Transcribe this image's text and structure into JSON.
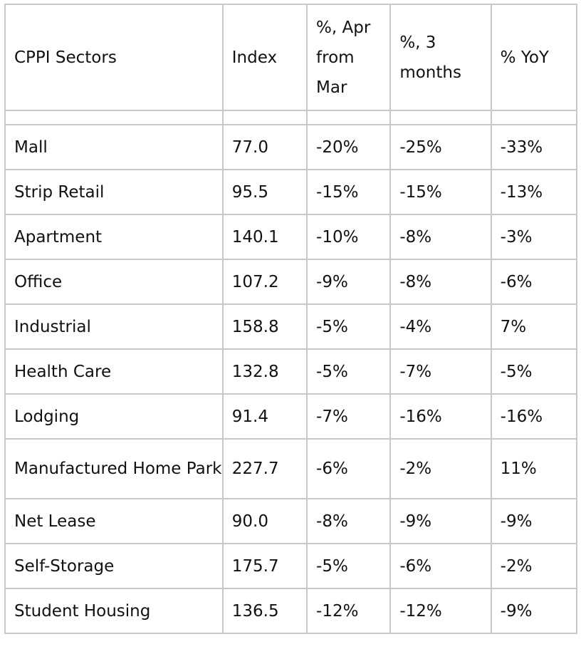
{
  "table": {
    "headers": [
      "CPPI Sectors",
      "Index",
      "%,  Apr from Mar",
      "%, 3 months",
      "%  YoY"
    ],
    "rows": [
      {
        "sector": "Mall",
        "index": "77.0",
        "mom": "-20%",
        "three_month": "-25%",
        "yoy": "-33%"
      },
      {
        "sector": "Strip Retail",
        "index": "95.5",
        "mom": "-15%",
        "three_month": "-15%",
        "yoy": "-13%"
      },
      {
        "sector": "Apartment",
        "index": "140.1",
        "mom": "-10%",
        "three_month": "-8%",
        "yoy": "-3%"
      },
      {
        "sector": "Office",
        "index": "107.2",
        "mom": "-9%",
        "three_month": "-8%",
        "yoy": "-6%"
      },
      {
        "sector": "Industrial",
        "index": "158.8",
        "mom": "-5%",
        "three_month": "-4%",
        "yoy": "7%"
      },
      {
        "sector": "Health Care",
        "index": "132.8",
        "mom": "-5%",
        "three_month": "-7%",
        "yoy": "-5%"
      },
      {
        "sector": "Lodging",
        "index": "91.4",
        "mom": "-7%",
        "three_month": "-16%",
        "yoy": "-16%"
      },
      {
        "sector": "Manufactured Home Park",
        "index": "227.7",
        "mom": "-6%",
        "three_month": "-2%",
        "yoy": "11%"
      },
      {
        "sector": "Net Lease",
        "index": "90.0",
        "mom": "-8%",
        "three_month": "-9%",
        "yoy": "-9%"
      },
      {
        "sector": "Self-Storage",
        "index": "175.7",
        "mom": "-5%",
        "three_month": "-6%",
        "yoy": "-2%"
      },
      {
        "sector": "Student Housing",
        "index": "136.5",
        "mom": "-12%",
        "three_month": "-12%",
        "yoy": "-9%"
      }
    ]
  },
  "colors": {
    "border": "#c8c8c8",
    "text": "#111111",
    "background": "#ffffff"
  }
}
